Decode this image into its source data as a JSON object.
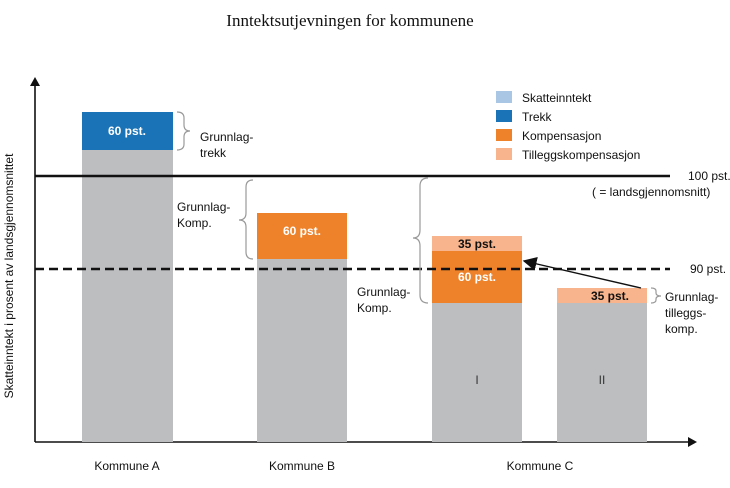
{
  "title": "Inntektsutjevningen for kommunene",
  "y_axis_label": "Skatteinntekt i prosent av landsgjennomsnittet",
  "legend": [
    {
      "label": "Skatteinntekt",
      "color": "#a9c7e4"
    },
    {
      "label": "Trekk",
      "color": "#1a73b7"
    },
    {
      "label": "Kompensasjon",
      "color": "#ee822a"
    },
    {
      "label": "Tilleggskompensasjon",
      "color": "#f8b48c"
    }
  ],
  "reference_lines": {
    "line_100": "100 pst.",
    "line_100_note": "( = landsgjennomsnitt)",
    "line_90": "90 pst."
  },
  "categories": {
    "a": "Kommune A",
    "b": "Kommune B",
    "c": "Kommune C"
  },
  "bar_labels": {
    "a_trekk": "60 pst.",
    "b_komp": "60 pst.",
    "c1_tillegg": "35 pst.",
    "c1_komp": "60 pst.",
    "c2_tillegg": "35 pst."
  },
  "sub_labels": {
    "c1": "I",
    "c2": "II"
  },
  "annotations": {
    "a_line1": "Grunnlag-",
    "a_line2": "trekk",
    "b_line1": "Grunnlag-",
    "b_line2": "Komp.",
    "c_line1": "Grunnlag-",
    "c_line2": "Komp.",
    "c2_line1": "Grunnlag-",
    "c2_line2": "tilleggs-",
    "c2_line3": "komp."
  },
  "colors": {
    "tax_bar": "#bcbec0",
    "trekk": "#1a73b7",
    "kompensasjon": "#ee822a",
    "tillegg": "#f8b48c"
  }
}
